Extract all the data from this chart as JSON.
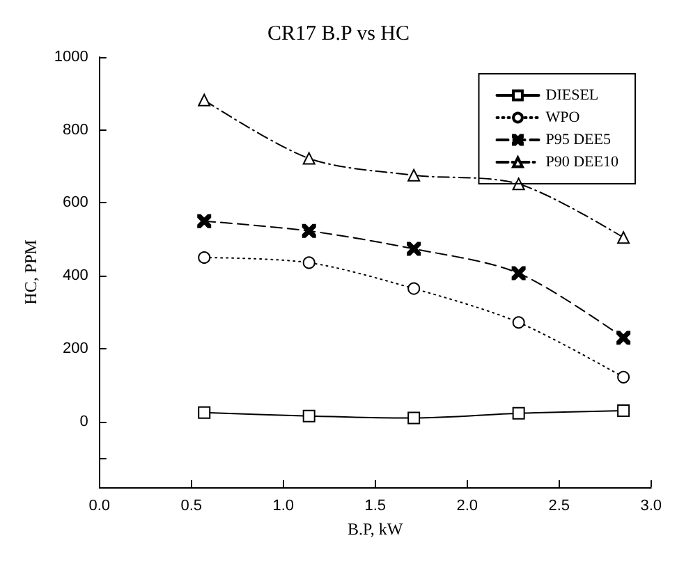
{
  "chart_data": {
    "type": "line",
    "title": "CR17 B.P vs HC",
    "xlabel": "B.P, kW",
    "ylabel": "HC, PPM",
    "x": [
      0.57,
      1.14,
      1.71,
      2.28,
      2.85
    ],
    "xlim": [
      0,
      3
    ],
    "xticks": [
      {
        "value": 0,
        "label": "0.0"
      },
      0.5,
      {
        "value": 1,
        "label": "1.0"
      },
      1.5,
      {
        "value": 2,
        "label": "2.0"
      },
      2.5,
      {
        "value": 3,
        "label": "3.0"
      }
    ],
    "ylim": [
      -180,
      1000
    ],
    "yticks": [
      {
        "value": -100,
        "label": null
      },
      0,
      200,
      400,
      600,
      800,
      1000
    ],
    "grid": false,
    "legend": "top right",
    "series": [
      {
        "name": "DIESEL",
        "color": "#000000",
        "marker": "square",
        "line_style": "solid",
        "values": [
          25,
          15,
          10,
          23,
          30
        ]
      },
      {
        "name": "WPO",
        "color": "#000000",
        "marker": "circle",
        "line_style": "dotted",
        "values": [
          450,
          436,
          365,
          272,
          122
        ]
      },
      {
        "name": "P95 DEE5",
        "color": "#000000",
        "marker": "cross",
        "line_style": "dashed",
        "values": [
          550,
          523,
          474,
          407,
          230
        ]
      },
      {
        "name": "P90 DEE10",
        "color": "#000000",
        "marker": "triangle",
        "line_style": "dashdot",
        "values": [
          882,
          722,
          676,
          652,
          505
        ]
      }
    ]
  }
}
